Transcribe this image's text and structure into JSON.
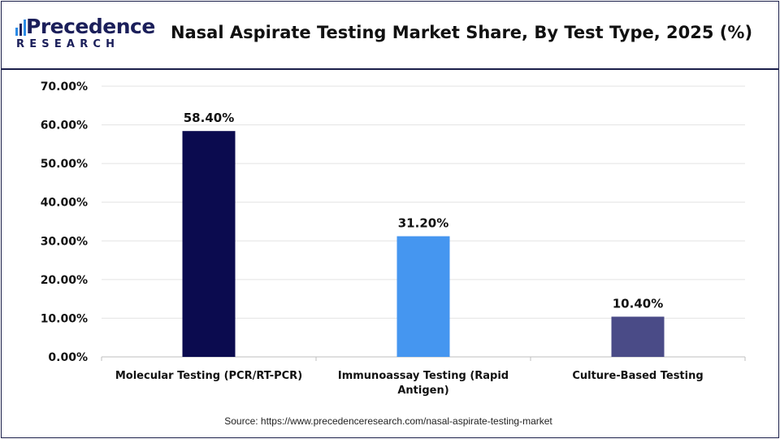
{
  "brand": {
    "name": "Precedence",
    "sub": "RESEARCH"
  },
  "chart_data": {
    "type": "bar",
    "title": "Nasal Aspirate Testing Market Share, By Test Type, 2025 (%)",
    "categories": [
      [
        "Molecular Testing (PCR/RT-PCR)"
      ],
      [
        "Immunoassay Testing (Rapid",
        "Antigen)"
      ],
      [
        "Culture-Based Testing"
      ]
    ],
    "values": [
      58.4,
      31.2,
      10.4
    ],
    "data_labels": [
      "58.40%",
      "31.20%",
      "10.40%"
    ],
    "colors": [
      "#0b0b4f",
      "#4596f0",
      "#4a4b87"
    ],
    "ylim": [
      0,
      70
    ],
    "yticks": [
      0,
      10,
      20,
      30,
      40,
      50,
      60,
      70
    ],
    "ytick_labels": [
      "0.00%",
      "10.00%",
      "20.00%",
      "30.00%",
      "40.00%",
      "50.00%",
      "60.00%",
      "70.00%"
    ],
    "xlabel": "",
    "ylabel": "",
    "grid": true,
    "legend": "none"
  },
  "source": "Source: https://www.precedenceresearch.com/nasal-aspirate-testing-market"
}
